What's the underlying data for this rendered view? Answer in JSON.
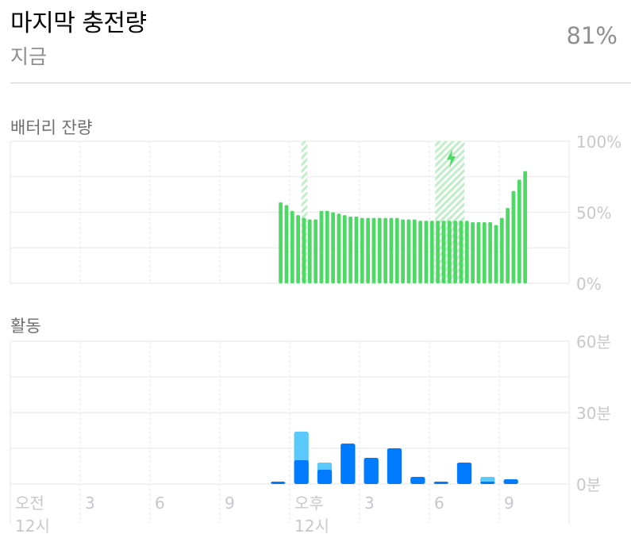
{
  "header": {
    "title": "마지막 충전량",
    "subtitle": "지금",
    "percent": "81%"
  },
  "sections": {
    "battery_label": "배터리 잔량",
    "activity_label": "활동"
  },
  "colors": {
    "battery": "#4cd964",
    "charging_hatch": "#4cd964",
    "screen_on": "#007aff",
    "screen_off": "#5ac8fa",
    "grid": "#e5e5ea",
    "tick_text": "#c7c7cc"
  },
  "icons": {
    "charging": "lightning-bolt-icon"
  },
  "chart_data": [
    {
      "type": "bar",
      "name": "battery",
      "ylim": [
        0,
        100
      ],
      "yticks": [
        "100%",
        "50%",
        "0%"
      ],
      "x_slots": 96,
      "start_slot": 46,
      "values": [
        57,
        55,
        51,
        48,
        46,
        45,
        45,
        51,
        51,
        50,
        49,
        48,
        47,
        47,
        46,
        46,
        46,
        46,
        46,
        46,
        46,
        45,
        45,
        45,
        44,
        44,
        44,
        44,
        44,
        44,
        44,
        44,
        44,
        43,
        43,
        43,
        43,
        41,
        46,
        53,
        65,
        73,
        79
      ],
      "charging_spans": [
        [
          50,
          51
        ],
        [
          73,
          78
        ]
      ],
      "charging_icon_slot": 75
    },
    {
      "type": "bar",
      "name": "activity",
      "ylim": [
        0,
        60
      ],
      "yticks": [
        "60분",
        "30분",
        "0분"
      ],
      "x_slots": 24,
      "xticks": [
        {
          "slot": 0,
          "line1": "오전",
          "line2": "12시"
        },
        {
          "slot": 3,
          "line1": "3",
          "line2": ""
        },
        {
          "slot": 6,
          "line1": "6",
          "line2": ""
        },
        {
          "slot": 9,
          "line1": "9",
          "line2": ""
        },
        {
          "slot": 12,
          "line1": "오후",
          "line2": "12시"
        },
        {
          "slot": 15,
          "line1": "3",
          "line2": ""
        },
        {
          "slot": 18,
          "line1": "6",
          "line2": ""
        },
        {
          "slot": 21,
          "line1": "9",
          "line2": ""
        }
      ],
      "series": [
        {
          "key": "screen_on",
          "values": [
            0,
            0,
            0,
            0,
            0,
            0,
            0,
            0,
            0,
            0,
            0,
            1,
            10,
            6,
            17,
            11,
            15,
            3,
            1,
            9,
            1,
            2,
            0,
            0
          ]
        },
        {
          "key": "screen_off",
          "values": [
            0,
            0,
            0,
            0,
            0,
            0,
            0,
            0,
            0,
            0,
            0,
            0,
            12,
            3,
            0,
            0,
            0,
            0,
            0,
            0,
            2,
            0,
            0,
            0
          ]
        }
      ]
    }
  ]
}
